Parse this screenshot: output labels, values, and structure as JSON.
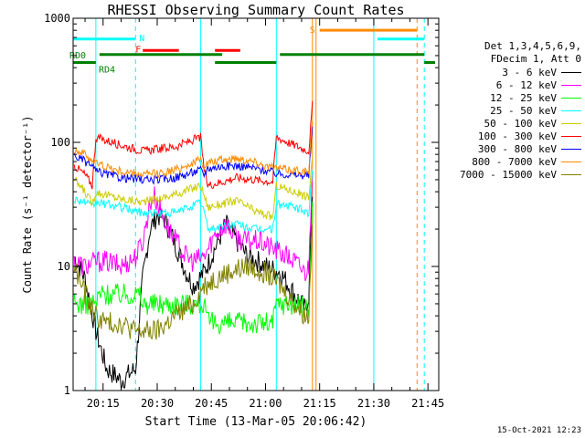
{
  "title": "RHESSI Observing Summary Count Rates",
  "xlabel": "Start Time (13-Mar-05 20:06:42)",
  "ylabel": "Count Rate (s⁻¹ detector⁻¹)",
  "stamp": "15-Oct-2021 12:23",
  "legend_header": [
    "Det 1,3,4,5,6,9,",
    "FDecim 1, Att 0"
  ],
  "chart_data": {
    "type": "line",
    "title": "RHESSI Observing Summary Count Rates",
    "xlabel": "Start Time (13-Mar-05 20:06:42)",
    "ylabel": "Count Rate (s⁻¹ detector⁻¹)",
    "xlim": [
      "20:06:42",
      "21:48:00"
    ],
    "ylim": [
      1,
      1000
    ],
    "yscale": "log",
    "x_ticks": [
      "20:15",
      "20:30",
      "20:45",
      "21:00",
      "21:15",
      "21:30",
      "21:45"
    ],
    "y_ticks": [
      "1",
      "10",
      "100",
      "1000"
    ],
    "series": [
      {
        "name": "3 - 6 keV",
        "color": "#000000",
        "x": [
          "20:07",
          "20:10",
          "20:13",
          "20:16",
          "20:20",
          "20:24",
          "20:26",
          "20:28",
          "20:30",
          "20:32",
          "20:34",
          "20:38",
          "20:40",
          "20:43",
          "20:46",
          "20:49",
          "20:52",
          "20:55",
          "20:58",
          "21:00",
          "21:04",
          "21:08",
          "21:11",
          "21:12",
          "21:13"
        ],
        "values": [
          12,
          8,
          3,
          1.5,
          1.2,
          1.5,
          8,
          20,
          26,
          24,
          18,
          9,
          7,
          9,
          14,
          22,
          16,
          12,
          11,
          10,
          9,
          6,
          4.5,
          6,
          40
        ]
      },
      {
        "name": "6 - 12 keV",
        "color": "#ff00ff",
        "x": [
          "20:07",
          "20:10",
          "20:13",
          "20:16",
          "20:20",
          "20:24",
          "20:26",
          "20:28",
          "20:29",
          "20:31",
          "20:34",
          "20:38",
          "20:40",
          "20:43",
          "20:46",
          "20:49",
          "20:52",
          "20:55",
          "20:58",
          "21:00",
          "21:04",
          "21:08",
          "21:11",
          "21:12",
          "21:13"
        ],
        "values": [
          11,
          10,
          11,
          11,
          10,
          12,
          16,
          32,
          38,
          28,
          18,
          12,
          11,
          12,
          18,
          22,
          17,
          16,
          16,
          15,
          13,
          11,
          9,
          10,
          70
        ]
      },
      {
        "name": "12 - 25 keV",
        "color": "#00ff00",
        "x": [
          "20:07",
          "20:10",
          "20:13",
          "20:14",
          "20:20",
          "20:25",
          "20:26",
          "20:30",
          "20:35",
          "20:40",
          "20:43",
          "20:44",
          "20:50",
          "20:55",
          "21:00",
          "21:02",
          "21:03",
          "21:08",
          "21:12",
          "21:13"
        ],
        "values": [
          5,
          5,
          5,
          6,
          6,
          6,
          5,
          5,
          5,
          5,
          5,
          3.5,
          3.5,
          3.5,
          3.5,
          3.5,
          5,
          5,
          4.5,
          30
        ]
      },
      {
        "name": "25 - 50 keV",
        "color": "#00ffff",
        "x": [
          "20:07",
          "20:10",
          "20:12",
          "20:13",
          "20:20",
          "20:26",
          "20:30",
          "20:35",
          "20:42",
          "20:43",
          "20:44",
          "20:48",
          "20:52",
          "20:57",
          "21:02",
          "21:03",
          "21:08",
          "21:12",
          "21:13"
        ],
        "values": [
          35,
          33,
          30,
          33,
          30,
          27,
          27,
          27,
          33,
          28,
          20,
          21,
          22,
          20,
          20,
          32,
          30,
          27,
          60
        ]
      },
      {
        "name": "50 - 100 keV",
        "color": "#cccc00",
        "x": [
          "20:07",
          "20:10",
          "20:12",
          "20:13",
          "20:20",
          "20:26",
          "20:30",
          "20:35",
          "20:42",
          "20:43",
          "20:44",
          "20:48",
          "20:52",
          "20:57",
          "21:02",
          "21:03",
          "21:08",
          "21:12",
          "21:13"
        ],
        "values": [
          50,
          40,
          32,
          40,
          35,
          33,
          35,
          38,
          45,
          38,
          30,
          32,
          34,
          28,
          25,
          45,
          40,
          36,
          80
        ]
      },
      {
        "name": "100 - 300 keV",
        "color": "#ff0000",
        "x": [
          "20:07",
          "20:10",
          "20:12",
          "20:13",
          "20:20",
          "20:26",
          "20:30",
          "20:35",
          "20:42",
          "20:43",
          "20:44",
          "20:48",
          "20:52",
          "20:57",
          "21:02",
          "21:03",
          "21:08",
          "21:12",
          "21:13"
        ],
        "values": [
          65,
          55,
          45,
          110,
          95,
          85,
          88,
          92,
          110,
          60,
          45,
          48,
          52,
          50,
          48,
          110,
          95,
          85,
          200
        ]
      },
      {
        "name": "300 - 800 keV",
        "color": "#0000ff",
        "x": [
          "20:07",
          "20:10",
          "20:12",
          "20:13",
          "20:20",
          "20:26",
          "20:30",
          "20:35",
          "20:42",
          "20:43",
          "20:44",
          "20:48",
          "20:52",
          "20:57",
          "21:02",
          "21:03",
          "21:08",
          "21:12",
          "21:13"
        ],
        "values": [
          78,
          70,
          65,
          58,
          52,
          50,
          50,
          52,
          60,
          55,
          62,
          64,
          65,
          62,
          58,
          56,
          55,
          54,
          130
        ]
      },
      {
        "name": "800 - 7000 keV",
        "color": "#ff8c00",
        "x": [
          "20:07",
          "20:10",
          "20:12",
          "20:13",
          "20:20",
          "20:26",
          "20:30",
          "20:35",
          "20:42",
          "20:43",
          "20:44",
          "20:48",
          "20:52",
          "20:57",
          "21:02",
          "21:03",
          "21:08",
          "21:12",
          "21:13"
        ],
        "values": [
          88,
          80,
          72,
          68,
          58,
          55,
          56,
          60,
          72,
          65,
          68,
          72,
          75,
          70,
          62,
          62,
          60,
          58,
          150
        ]
      },
      {
        "name": "7000 - 15000 keV",
        "color": "#808000",
        "x": [
          "20:07",
          "20:10",
          "20:13",
          "20:16",
          "20:20",
          "20:24",
          "20:27",
          "20:30",
          "20:35",
          "20:40",
          "20:43",
          "20:46",
          "20:50",
          "20:55",
          "21:00",
          "21:04",
          "21:08",
          "21:11",
          "21:12",
          "21:13"
        ],
        "values": [
          10,
          6,
          4,
          3.5,
          3.5,
          3,
          3,
          3,
          4,
          5,
          7,
          8,
          9,
          10,
          9,
          7,
          5,
          4,
          4,
          25
        ]
      }
    ],
    "state_bars": [
      {
        "label": "N",
        "color": "#00ffff",
        "y": 680,
        "segments": [
          [
            "20:06:42",
            "20:24"
          ],
          [
            "21:31",
            "21:44"
          ]
        ]
      },
      {
        "label": "F",
        "color": "#ff0000",
        "y": 550,
        "segments": [
          [
            "20:26",
            "20:36"
          ],
          [
            "20:46",
            "20:53"
          ]
        ]
      },
      {
        "label": "S",
        "color": "#ff8c00",
        "y": 800,
        "segments": [
          [
            "21:15",
            "21:42"
          ]
        ]
      },
      {
        "label": "RD0",
        "color": "#008000",
        "y": 510,
        "segments": [
          [
            "20:14",
            "20:48"
          ],
          [
            "21:04",
            "21:44"
          ]
        ]
      },
      {
        "label": "RD4",
        "color": "#008000",
        "y": 440,
        "segments": [
          [
            "20:06:42",
            "20:13"
          ],
          [
            "20:46",
            "21:03"
          ],
          [
            "21:44",
            "21:48"
          ]
        ]
      }
    ],
    "vertical_lines": [
      {
        "x": "20:13",
        "color": "#00ffff",
        "style": "solid"
      },
      {
        "x": "20:24",
        "color": "#00ffff",
        "style": "dashed"
      },
      {
        "x": "20:42",
        "color": "#00ffff",
        "style": "solid"
      },
      {
        "x": "21:03",
        "color": "#00ffff",
        "style": "solid"
      },
      {
        "x": "21:13",
        "color": "#ff8c00",
        "style": "solid"
      },
      {
        "x": "21:14",
        "color": "#ff8c00",
        "style": "solid"
      },
      {
        "x": "21:30",
        "color": "#00ffff",
        "style": "solid"
      },
      {
        "x": "21:42",
        "color": "#ff8c00",
        "style": "dashed"
      },
      {
        "x": "21:44",
        "color": "#00ffff",
        "style": "dashed"
      }
    ]
  }
}
